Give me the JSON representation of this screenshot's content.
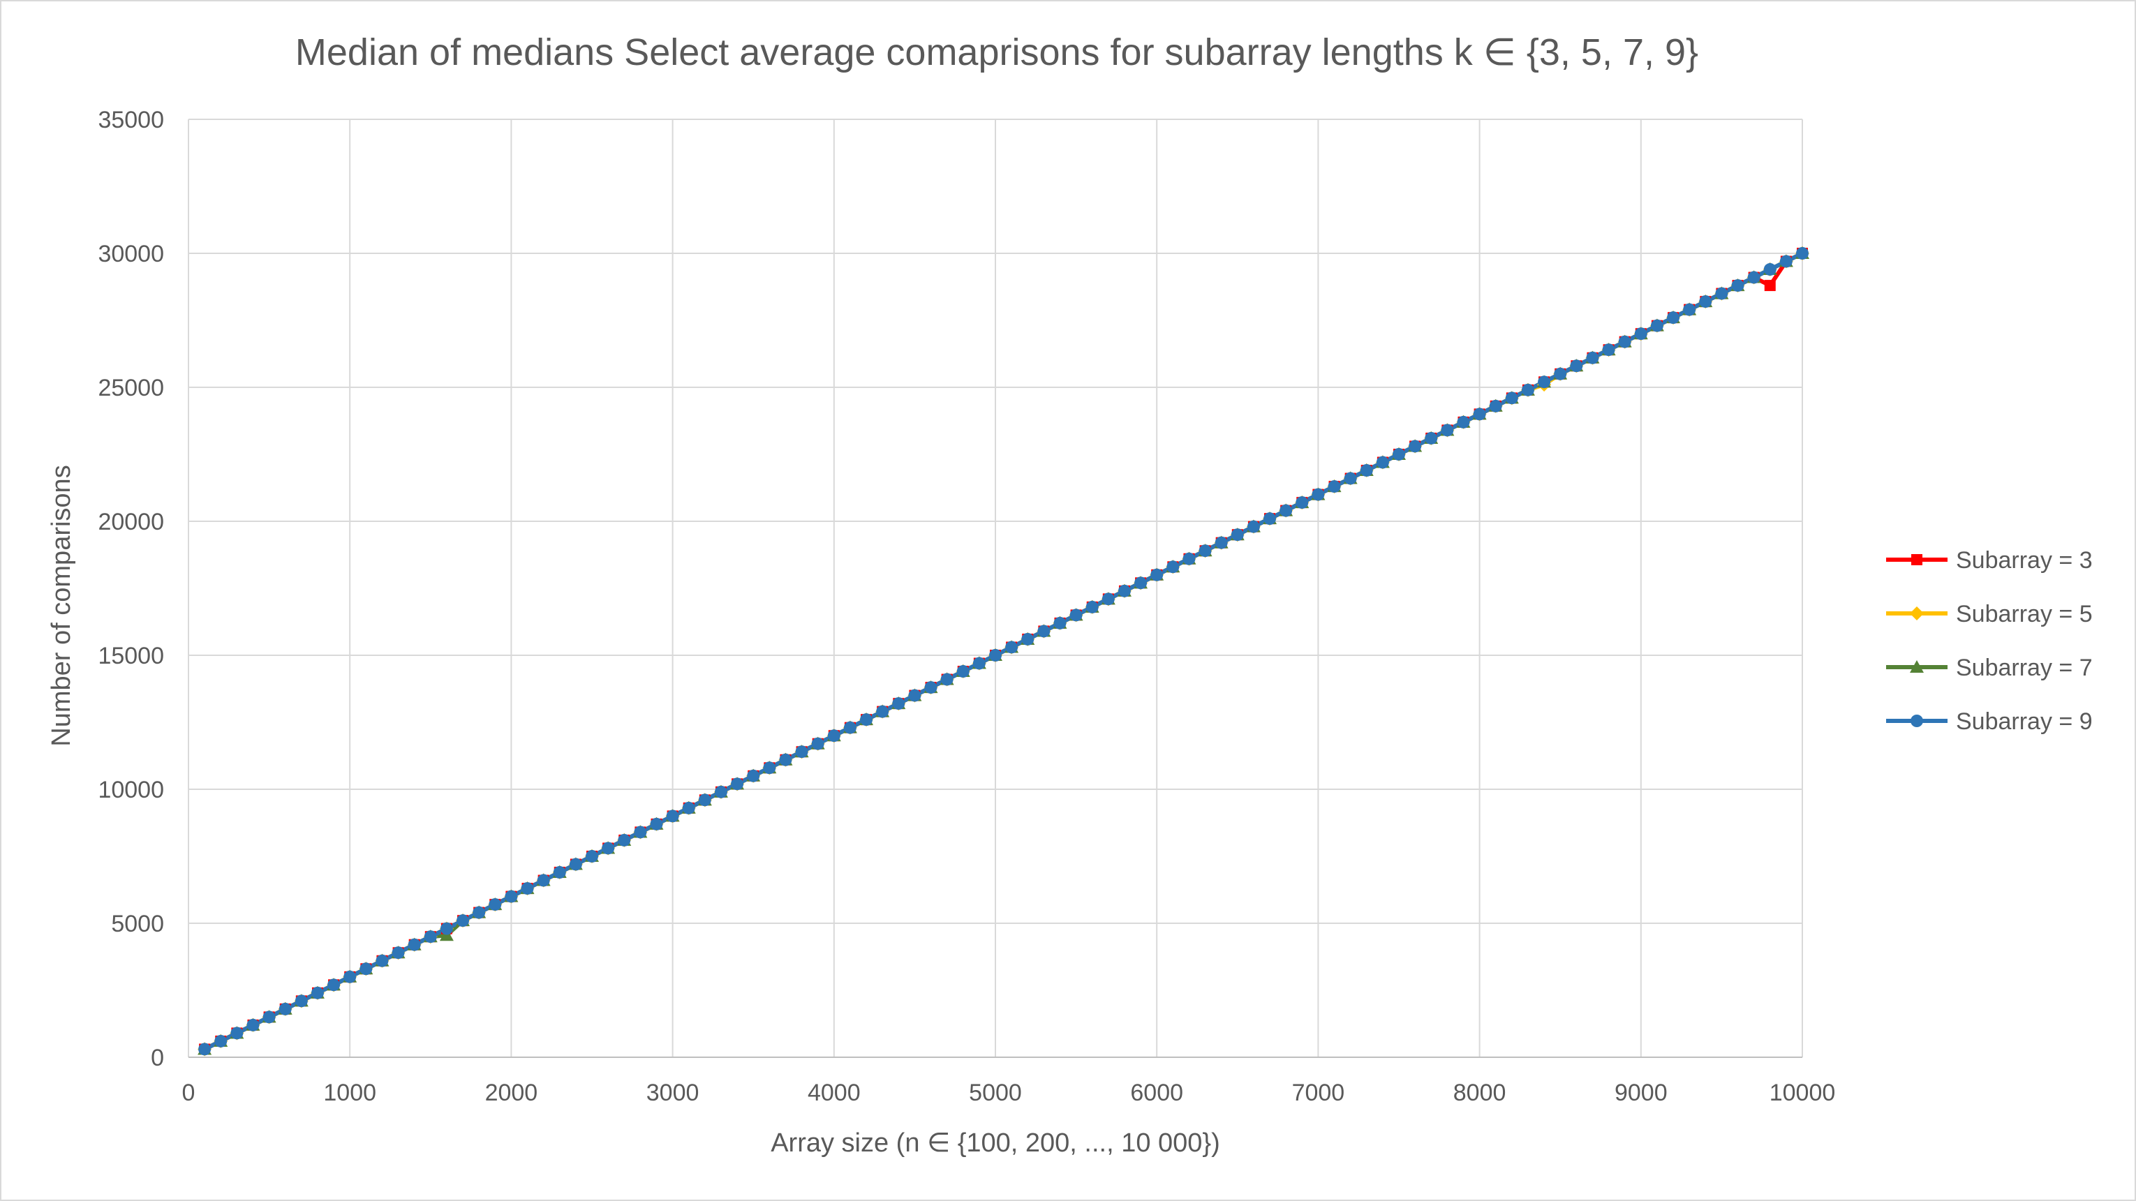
{
  "chart_data": {
    "type": "line",
    "title": "Median of medians Select average comaprisons for subarray lengths k ∈ {3, 5, 7, 9}",
    "xlabel": "Array size (n ∈ {100, 200, ..., 10 000})",
    "ylabel": "Number of comparisons",
    "xlim": [
      0,
      10000
    ],
    "ylim": [
      0,
      35000
    ],
    "x_ticks": [
      "0",
      "1000",
      "2000",
      "3000",
      "4000",
      "5000",
      "6000",
      "7000",
      "8000",
      "9000",
      "10000"
    ],
    "y_ticks": [
      "0",
      "5000",
      "10000",
      "15000",
      "20000",
      "25000",
      "30000",
      "35000"
    ],
    "grid": true,
    "legend_position": "right",
    "x": [
      100,
      200,
      300,
      400,
      500,
      600,
      700,
      800,
      900,
      1000,
      1100,
      1200,
      1300,
      1400,
      1500,
      1600,
      1700,
      1800,
      1900,
      2000,
      2100,
      2200,
      2300,
      2400,
      2500,
      2600,
      2700,
      2800,
      2900,
      3000,
      3100,
      3200,
      3300,
      3400,
      3500,
      3600,
      3700,
      3800,
      3900,
      4000,
      4100,
      4200,
      4300,
      4400,
      4500,
      4600,
      4700,
      4800,
      4900,
      5000,
      5100,
      5200,
      5300,
      5400,
      5500,
      5600,
      5700,
      5800,
      5900,
      6000,
      6100,
      6200,
      6300,
      6400,
      6500,
      6600,
      6700,
      6800,
      6900,
      7000,
      7100,
      7200,
      7300,
      7400,
      7500,
      7600,
      7700,
      7800,
      7900,
      8000,
      8100,
      8200,
      8300,
      8400,
      8500,
      8600,
      8700,
      8800,
      8900,
      9000,
      9100,
      9200,
      9300,
      9400,
      9500,
      9600,
      9700,
      9800,
      9900,
      10000
    ],
    "series": [
      {
        "name": "Subarray = 3",
        "color": "#ff0000",
        "marker": "square",
        "values": [
          300,
          600,
          900,
          1200,
          1500,
          1800,
          2100,
          2400,
          2700,
          3000,
          3300,
          3600,
          3900,
          4200,
          4500,
          4800,
          5100,
          5400,
          5700,
          6000,
          6300,
          6600,
          6900,
          7200,
          7500,
          7800,
          8100,
          8400,
          8700,
          9000,
          9300,
          9600,
          9900,
          10200,
          10500,
          10800,
          11100,
          11400,
          11700,
          12000,
          12300,
          12600,
          12900,
          13200,
          13500,
          13800,
          14100,
          14400,
          14700,
          15000,
          15300,
          15600,
          15900,
          16200,
          16500,
          16800,
          17100,
          17400,
          17700,
          18000,
          18300,
          18600,
          18900,
          19200,
          19500,
          19800,
          20100,
          20400,
          20700,
          21000,
          21300,
          21600,
          21900,
          22200,
          22500,
          22800,
          23100,
          23400,
          23700,
          24000,
          24300,
          24600,
          24900,
          25200,
          25500,
          25800,
          26100,
          26400,
          26700,
          27000,
          27300,
          27600,
          27900,
          28200,
          28500,
          28800,
          29100,
          28800,
          29700,
          30000
        ]
      },
      {
        "name": "Subarray = 5",
        "color": "#ffc000",
        "marker": "diamond",
        "values": [
          300,
          600,
          900,
          1200,
          1500,
          1800,
          2100,
          2400,
          2700,
          3000,
          3300,
          3600,
          3900,
          4200,
          4500,
          4800,
          5100,
          5400,
          5700,
          6000,
          6300,
          6600,
          6900,
          7200,
          7500,
          7800,
          8100,
          8400,
          8700,
          9000,
          9300,
          9600,
          9900,
          10200,
          10500,
          10800,
          11100,
          11400,
          11700,
          12000,
          12300,
          12600,
          12900,
          13200,
          13500,
          13800,
          14100,
          14400,
          14700,
          15000,
          15300,
          15600,
          15900,
          16200,
          16500,
          16800,
          17100,
          17400,
          17700,
          18000,
          18300,
          18600,
          18900,
          19200,
          19500,
          19800,
          20100,
          20400,
          20700,
          21000,
          21300,
          21600,
          21900,
          22200,
          22500,
          22800,
          23100,
          23400,
          23700,
          24000,
          24300,
          24600,
          24900,
          25100,
          25500,
          25800,
          26100,
          26400,
          26700,
          27000,
          27300,
          27600,
          27900,
          28200,
          28500,
          28800,
          29100,
          29400,
          29700,
          30000
        ]
      },
      {
        "name": "Subarray = 7",
        "color": "#548235",
        "marker": "triangle",
        "values": [
          300,
          600,
          900,
          1200,
          1500,
          1800,
          2100,
          2400,
          2700,
          3000,
          3300,
          3600,
          3900,
          4200,
          4500,
          4550,
          5100,
          5400,
          5700,
          6000,
          6300,
          6600,
          6900,
          7200,
          7500,
          7800,
          8100,
          8400,
          8700,
          9000,
          9300,
          9600,
          9900,
          10200,
          10500,
          10800,
          11100,
          11400,
          11700,
          12000,
          12300,
          12600,
          12900,
          13200,
          13500,
          13800,
          14100,
          14400,
          14700,
          15000,
          15300,
          15600,
          15900,
          16200,
          16500,
          16800,
          17100,
          17400,
          17700,
          18000,
          18300,
          18600,
          18900,
          19200,
          19500,
          19800,
          20100,
          20400,
          20700,
          21000,
          21300,
          21600,
          21900,
          22200,
          22500,
          22800,
          23100,
          23400,
          23700,
          24000,
          24300,
          24600,
          24900,
          25200,
          25500,
          25800,
          26100,
          26400,
          26700,
          27000,
          27300,
          27600,
          27900,
          28200,
          28500,
          28800,
          29100,
          29400,
          29700,
          30000
        ]
      },
      {
        "name": "Subarray = 9",
        "color": "#2e75b6",
        "marker": "circle",
        "values": [
          300,
          600,
          900,
          1200,
          1500,
          1800,
          2100,
          2400,
          2700,
          3000,
          3300,
          3600,
          3900,
          4200,
          4500,
          4800,
          5100,
          5400,
          5700,
          6000,
          6300,
          6600,
          6900,
          7200,
          7500,
          7800,
          8100,
          8400,
          8700,
          9000,
          9300,
          9600,
          9900,
          10200,
          10500,
          10800,
          11100,
          11400,
          11700,
          12000,
          12300,
          12600,
          12900,
          13200,
          13500,
          13800,
          14100,
          14400,
          14700,
          15000,
          15300,
          15600,
          15900,
          16200,
          16500,
          16800,
          17100,
          17400,
          17700,
          18000,
          18300,
          18600,
          18900,
          19200,
          19500,
          19800,
          20100,
          20400,
          20700,
          21000,
          21300,
          21600,
          21900,
          22200,
          22500,
          22800,
          23100,
          23400,
          23700,
          24000,
          24300,
          24600,
          24900,
          25200,
          25500,
          25800,
          26100,
          26400,
          26700,
          27000,
          27300,
          27600,
          27900,
          28200,
          28500,
          28800,
          29100,
          29400,
          29700,
          30000
        ]
      }
    ]
  }
}
